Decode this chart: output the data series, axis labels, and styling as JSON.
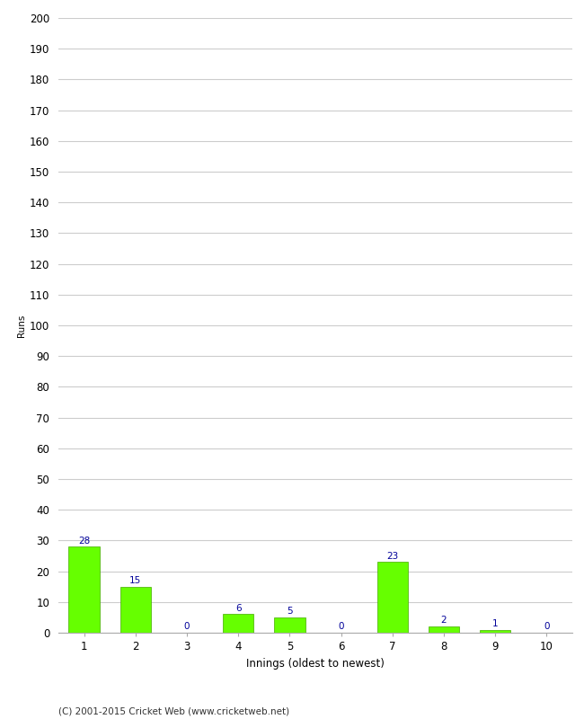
{
  "xlabel": "Innings (oldest to newest)",
  "ylabel": "Runs",
  "categories": [
    "1",
    "2",
    "3",
    "4",
    "5",
    "6",
    "7",
    "8",
    "9",
    "10"
  ],
  "values": [
    28,
    15,
    0,
    6,
    5,
    0,
    23,
    2,
    1,
    0
  ],
  "bar_color": "#66ff00",
  "bar_edge_color": "#44aa00",
  "label_color": "#000099",
  "ylim": [
    0,
    200
  ],
  "yticks": [
    0,
    10,
    20,
    30,
    40,
    50,
    60,
    70,
    80,
    90,
    100,
    110,
    120,
    130,
    140,
    150,
    160,
    170,
    180,
    190,
    200
  ],
  "grid_color": "#cccccc",
  "bg_color": "#ffffff",
  "footer": "(C) 2001-2015 Cricket Web (www.cricketweb.net)",
  "label_fontsize": 7.5,
  "axis_fontsize": 8.5,
  "ylabel_fontsize": 7.5,
  "footer_fontsize": 7.5,
  "title_fontsize": 11
}
